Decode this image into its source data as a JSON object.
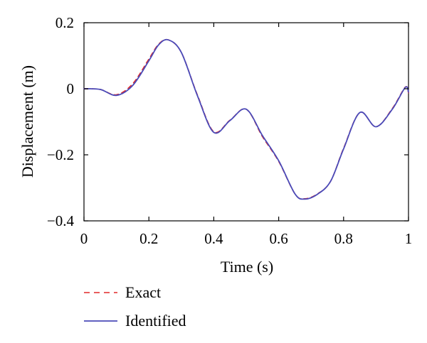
{
  "chart_data": {
    "type": "line",
    "title": "",
    "xlabel": "Time (s)",
    "ylabel": "Displacement (m)",
    "xlim": [
      0,
      1
    ],
    "ylim": [
      -0.4,
      0.2
    ],
    "grid": false,
    "legend_position": "bottom-left",
    "x_ticks": [
      {
        "value": 0,
        "label": "0"
      },
      {
        "value": 0.2,
        "label": "0.2"
      },
      {
        "value": 0.4,
        "label": "0.4"
      },
      {
        "value": 0.6,
        "label": "0.6"
      },
      {
        "value": 0.8,
        "label": "0.8"
      },
      {
        "value": 1,
        "label": "1"
      }
    ],
    "y_ticks": [
      {
        "value": 0.2,
        "label": "0.2"
      },
      {
        "value": 0,
        "label": "0"
      },
      {
        "value": -0.2,
        "label": "−0.2"
      },
      {
        "value": -0.4,
        "label": "−0.4"
      }
    ],
    "series": [
      {
        "name": "Exact",
        "color": "#e02828",
        "style": "dashed",
        "x": [
          0,
          0.05,
          0.1,
          0.15,
          0.2,
          0.23,
          0.26,
          0.3,
          0.35,
          0.4,
          0.45,
          0.5,
          0.55,
          0.6,
          0.65,
          0.68,
          0.72,
          0.76,
          0.8,
          0.85,
          0.9,
          0.95,
          0.99,
          1.0
        ],
        "y": [
          0.0,
          -0.002,
          -0.018,
          0.015,
          0.09,
          0.135,
          0.148,
          0.11,
          -0.02,
          -0.13,
          -0.095,
          -0.062,
          -0.145,
          -0.22,
          -0.318,
          -0.333,
          -0.318,
          -0.28,
          -0.18,
          -0.072,
          -0.115,
          -0.06,
          0.005,
          -0.012
        ]
      },
      {
        "name": "Identified",
        "color": "#4a4ab8",
        "style": "solid",
        "x": [
          0,
          0.05,
          0.1,
          0.15,
          0.2,
          0.23,
          0.26,
          0.3,
          0.35,
          0.4,
          0.45,
          0.5,
          0.55,
          0.6,
          0.65,
          0.68,
          0.72,
          0.76,
          0.8,
          0.85,
          0.9,
          0.95,
          0.99,
          1.0
        ],
        "y": [
          0.0,
          -0.002,
          -0.02,
          0.01,
          0.085,
          0.133,
          0.148,
          0.11,
          -0.022,
          -0.132,
          -0.096,
          -0.062,
          -0.142,
          -0.218,
          -0.318,
          -0.334,
          -0.319,
          -0.28,
          -0.182,
          -0.072,
          -0.115,
          -0.062,
          0.004,
          -0.01
        ]
      }
    ]
  }
}
